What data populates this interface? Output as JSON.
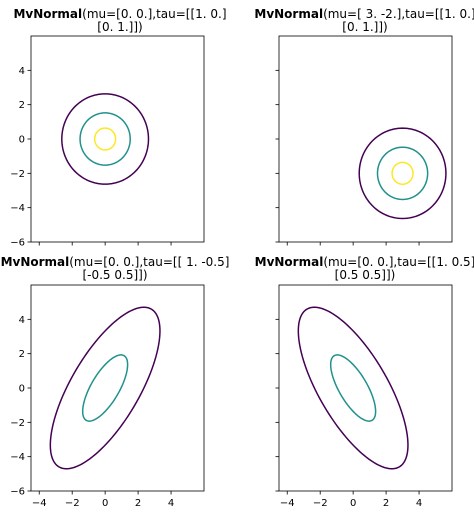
{
  "figure": {
    "colors": {
      "outer": "#440154",
      "middle": "#21918c",
      "inner": "#fde725"
    },
    "xlim": [
      -4.5,
      6
    ],
    "ylim": [
      -6,
      6
    ],
    "xticks": [
      -4,
      -2,
      0,
      2,
      4
    ],
    "yticks": [
      -6,
      -4,
      -2,
      0,
      2,
      4
    ]
  },
  "chart_data": [
    {
      "type": "contour",
      "title_bold": "MvNormal",
      "title_line1": "(mu=[0. 0.],tau=[[1. 0.]",
      "title_line2": "[0. 1.]])",
      "mu": [
        0,
        0
      ],
      "tau": [
        [
          1,
          0
        ],
        [
          0,
          1
        ]
      ],
      "contour_levels": [
        {
          "level": 0.005,
          "color": "outer"
        },
        {
          "level": 0.05,
          "color": "middle"
        },
        {
          "level": 0.13,
          "color": "inner"
        }
      ],
      "show_xticklabels": false,
      "show_yticklabels": true
    },
    {
      "type": "contour",
      "title_bold": "MvNormal",
      "title_line1": "(mu=[ 3. -2.],tau=[[1. 0.]",
      "title_line2": "[0. 1.]])",
      "mu": [
        3,
        -2
      ],
      "tau": [
        [
          1,
          0
        ],
        [
          0,
          1
        ]
      ],
      "contour_levels": [
        {
          "level": 0.005,
          "color": "outer"
        },
        {
          "level": 0.05,
          "color": "middle"
        },
        {
          "level": 0.13,
          "color": "inner"
        }
      ],
      "show_xticklabels": false,
      "show_yticklabels": false
    },
    {
      "type": "contour",
      "title_bold": "MvNormal",
      "title_line1": "(mu=[0. 0.],tau=[[ 1.  -0.5]",
      "title_line2": "[-0.5  0.5]])",
      "mu": [
        0,
        0
      ],
      "tau": [
        [
          1,
          -0.5
        ],
        [
          -0.5,
          0.5
        ]
      ],
      "contour_levels": [
        {
          "level": 0.005,
          "color": "outer"
        },
        {
          "level": 0.05,
          "color": "middle"
        },
        {
          "level": 0.09,
          "color": "inner"
        }
      ],
      "show_xticklabels": true,
      "show_yticklabels": true
    },
    {
      "type": "contour",
      "title_bold": "MvNormal",
      "title_line1": "(mu=[0. 0.],tau=[[1.  0.5]",
      "title_line2": "[0.5 0.5]])",
      "mu": [
        0,
        0
      ],
      "tau": [
        [
          1,
          0.5
        ],
        [
          0.5,
          0.5
        ]
      ],
      "contour_levels": [
        {
          "level": 0.005,
          "color": "outer"
        },
        {
          "level": 0.05,
          "color": "middle"
        },
        {
          "level": 0.09,
          "color": "inner"
        }
      ],
      "show_xticklabels": true,
      "show_yticklabels": false
    }
  ]
}
